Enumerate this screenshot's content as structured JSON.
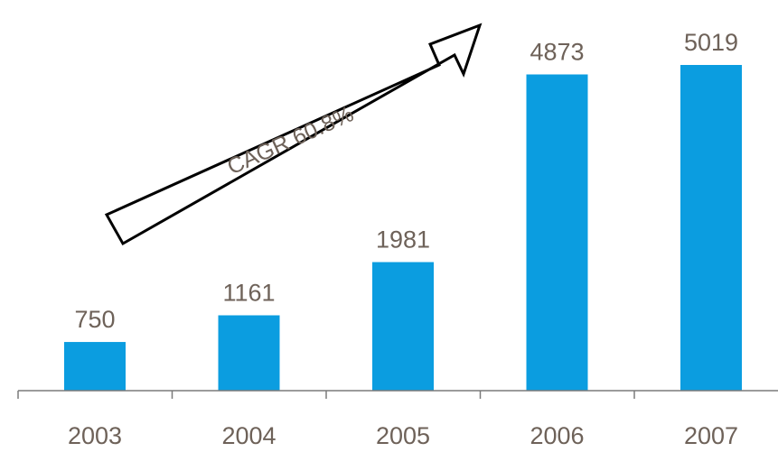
{
  "chart_data": {
    "type": "bar",
    "categories": [
      "2003",
      "2004",
      "2005",
      "2006",
      "2007"
    ],
    "values": [
      750,
      1161,
      1981,
      4873,
      5019
    ],
    "data_labels": [
      "750",
      "1161",
      "1981",
      "4873",
      "5019"
    ],
    "title": "",
    "xlabel": "",
    "ylabel": "",
    "ylim": [
      0,
      5400
    ],
    "grid": false,
    "legend": "none",
    "bar_color": "#0b9de0",
    "text_color": "#6e6259",
    "axis_color": "#7a7a7a",
    "annotation": {
      "text": "CAGR 60.8%",
      "shape": "arrow"
    }
  }
}
